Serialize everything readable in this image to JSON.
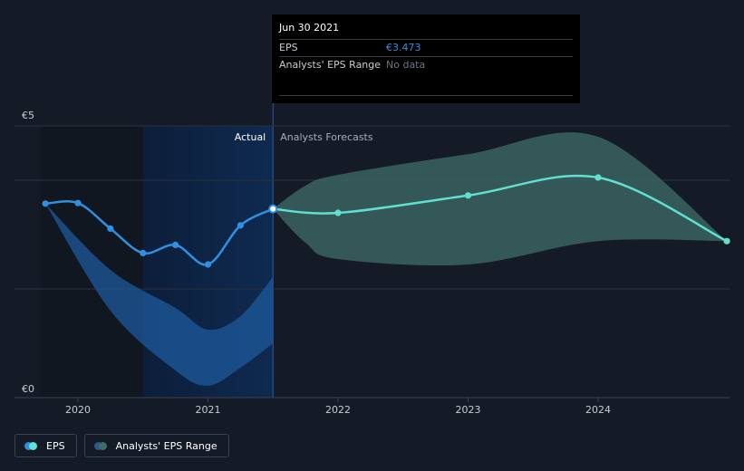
{
  "tooltip": {
    "date": "Jun 30 2021",
    "rows": [
      {
        "label": "EPS",
        "value": "€3.473"
      },
      {
        "label": "Analysts' EPS Range",
        "value": "No data"
      }
    ]
  },
  "region_labels": {
    "actual": "Actual",
    "forecast": "Analysts Forecasts"
  },
  "legend": [
    {
      "label": "EPS",
      "colors": [
        "#2f8fe0",
        "#5fe0d0"
      ]
    },
    {
      "label": "Analysts' EPS Range",
      "colors": [
        "#2a5a8a",
        "#3f6d69"
      ]
    }
  ],
  "colors": {
    "background": "#151b26",
    "actual_line": "#2f8fe0",
    "forecast_line": "#5fe0d0",
    "actual_band": "#1e5a9c",
    "forecast_band": "#3a6360",
    "highlight": "#0f2a50",
    "grid": "#2a3140"
  },
  "chart_data": {
    "type": "line",
    "ylim": [
      0,
      5
    ],
    "y_tick_labels": [
      "€0",
      "€5"
    ],
    "x_ticks": [
      2020,
      2021,
      2022,
      2023,
      2024
    ],
    "xlim": [
      2019.5,
      2024.99
    ],
    "actual_end": 2021.5,
    "past_shade_start": 2020.5,
    "series": [
      {
        "name": "EPS",
        "segment": "actual",
        "x": [
          2019.75,
          2020.0,
          2020.25,
          2020.5,
          2020.75,
          2021.0,
          2021.25,
          2021.5
        ],
        "y": [
          3.57,
          3.58,
          3.11,
          2.66,
          2.81,
          2.45,
          3.17,
          3.473
        ]
      },
      {
        "name": "EPS",
        "segment": "forecast",
        "x": [
          2021.5,
          2022.0,
          2023.0,
          2024.0,
          2024.99
        ],
        "y": [
          3.473,
          3.4,
          3.72,
          4.05,
          2.88
        ]
      }
    ],
    "actual_range": {
      "x": [
        2019.75,
        2020.25,
        2020.75,
        2021.0,
        2021.25,
        2021.5
      ],
      "low": [
        3.57,
        1.6,
        0.5,
        0.22,
        0.55,
        1.0
      ],
      "high": [
        3.57,
        2.35,
        1.65,
        1.25,
        1.5,
        2.22
      ]
    },
    "forecast_range": {
      "x": [
        2021.5,
        2021.75,
        2022.0,
        2023.0,
        2024.0,
        2024.99
      ],
      "low": [
        3.473,
        2.85,
        2.55,
        2.45,
        2.88,
        2.88
      ],
      "high": [
        3.473,
        3.9,
        4.1,
        4.48,
        4.8,
        2.88
      ]
    }
  }
}
